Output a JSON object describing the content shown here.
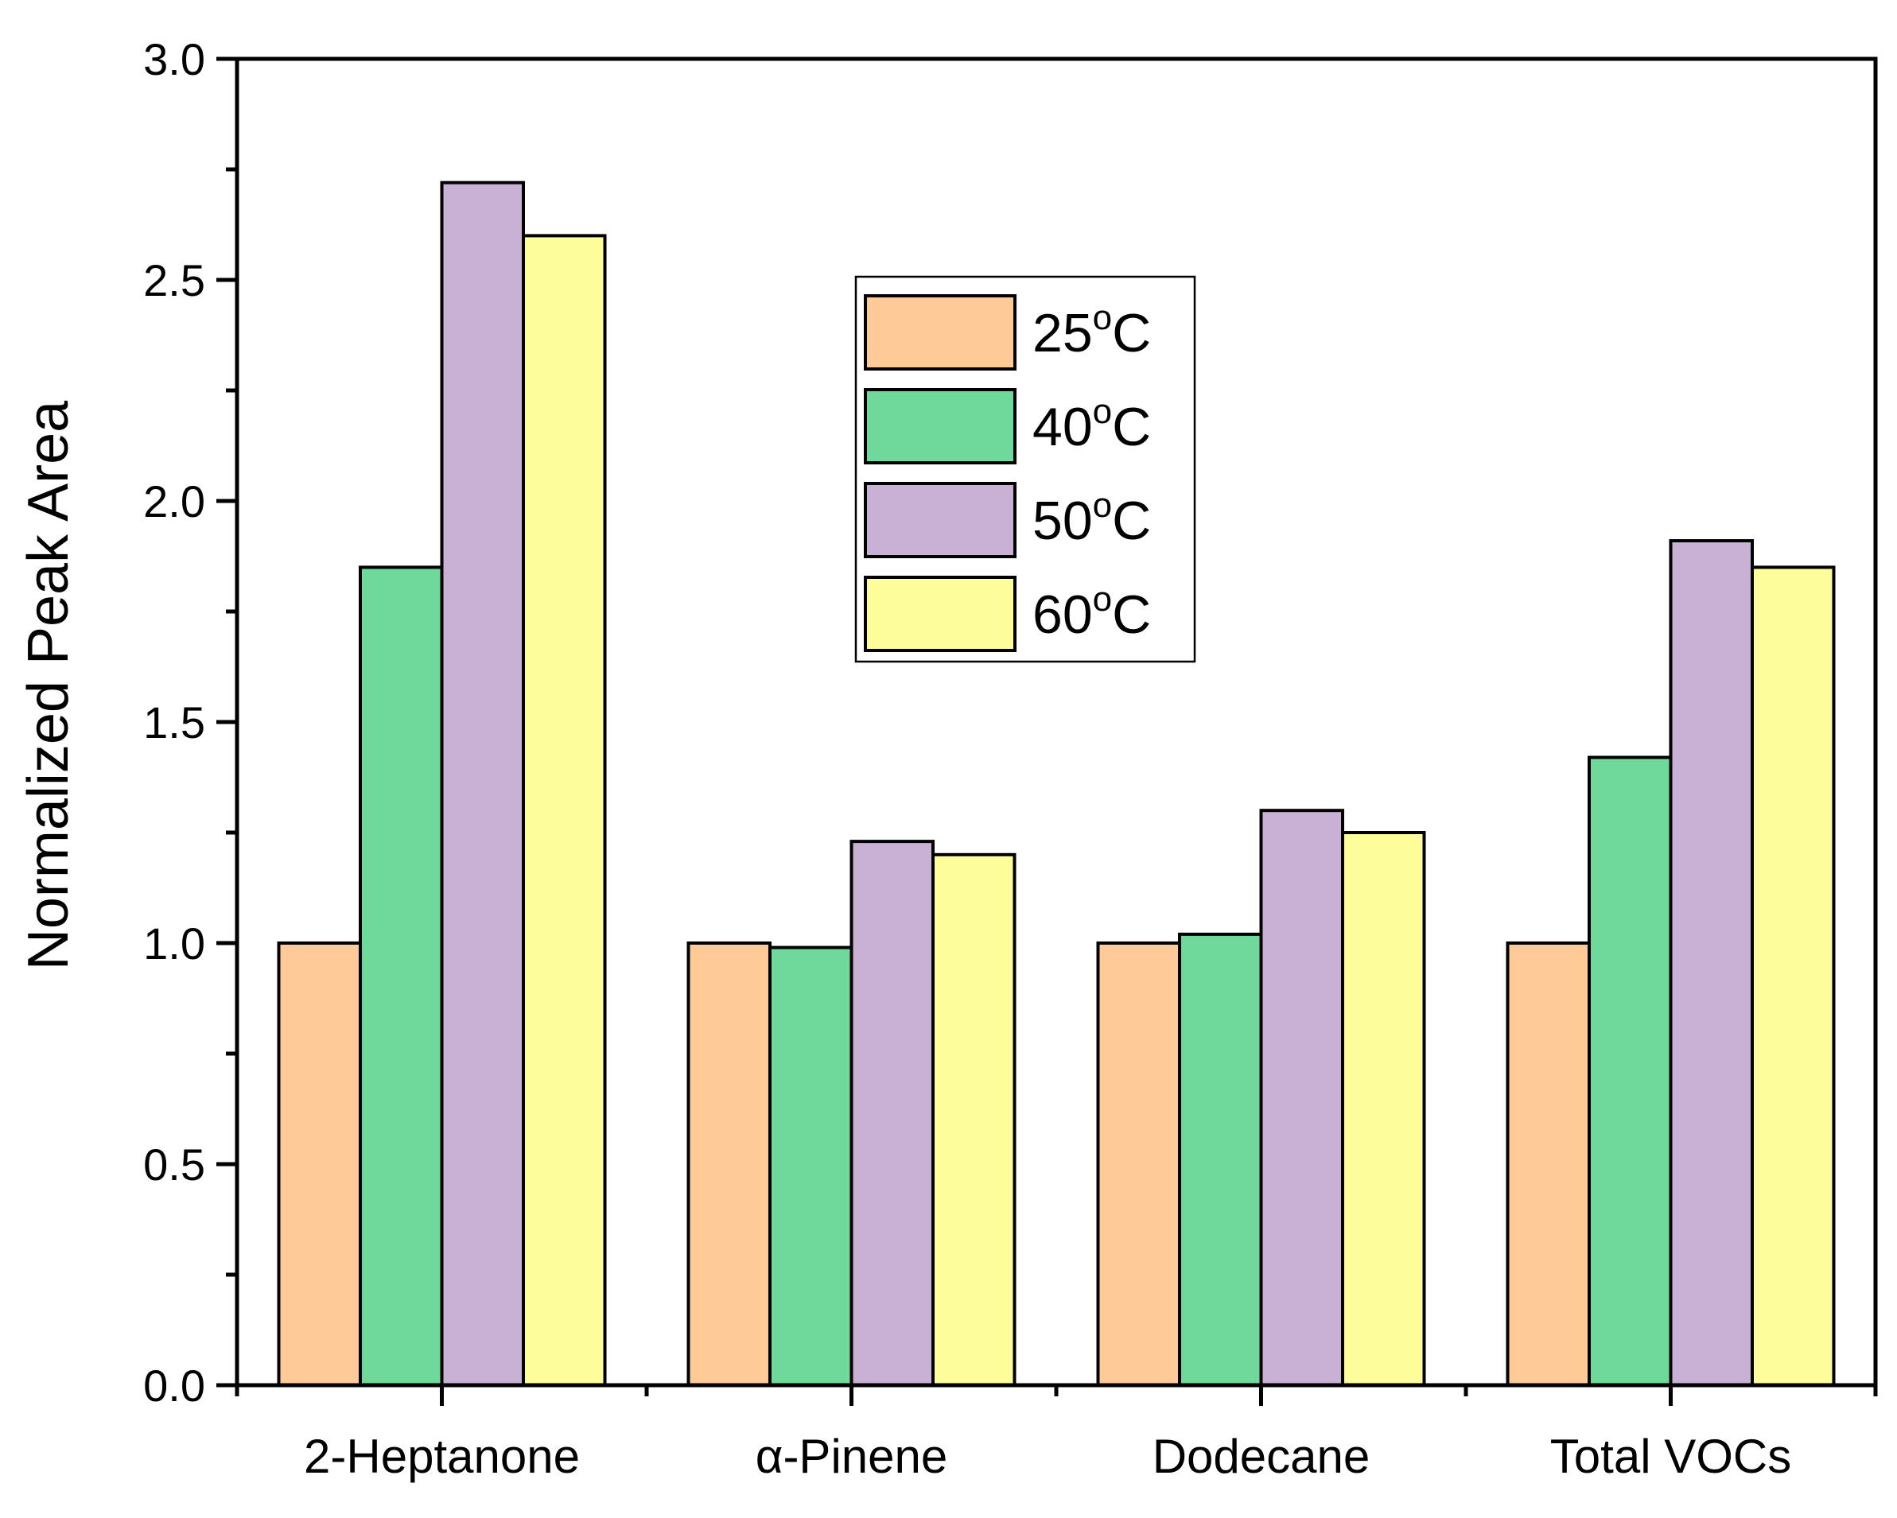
{
  "chart_data": {
    "type": "bar",
    "title": "",
    "xlabel": "",
    "ylabel": "Normalized Peak Area",
    "ylim": [
      0,
      3.0
    ],
    "yticks": [
      "0.0",
      "0.5",
      "1.0",
      "1.5",
      "2.0",
      "2.5",
      "3.0"
    ],
    "ytick_values": [
      0,
      0.5,
      1.0,
      1.5,
      2.0,
      2.5,
      3.0
    ],
    "categories": [
      "2-Heptanone",
      "α-Pinene",
      "Dodecane",
      "Total VOCs"
    ],
    "series": [
      {
        "name": "25",
        "unit": "oC",
        "color": "#FECB98",
        "values": [
          1.0,
          1.0,
          1.0,
          1.0
        ]
      },
      {
        "name": "40",
        "unit": "oC",
        "color": "#6FD89B",
        "values": [
          1.85,
          0.99,
          1.02,
          1.42
        ]
      },
      {
        "name": "50",
        "unit": "oC",
        "color": "#C9B1D6",
        "values": [
          2.72,
          1.23,
          1.3,
          1.91
        ]
      },
      {
        "name": "60",
        "unit": "oC",
        "color": "#FDFD9A",
        "values": [
          2.6,
          1.2,
          1.25,
          1.85
        ]
      }
    ],
    "legend_position": "top-center"
  }
}
